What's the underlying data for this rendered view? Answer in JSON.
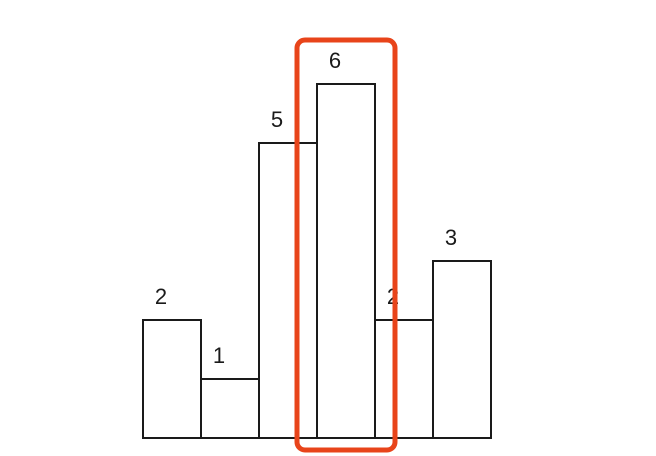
{
  "chart_data": {
    "type": "bar",
    "values": [
      2,
      1,
      5,
      6,
      2,
      3
    ],
    "labels": [
      "2",
      "1",
      "5",
      "6",
      "2",
      "3"
    ],
    "highlight_index": 3,
    "ylim": [
      0,
      6
    ],
    "grid": false,
    "bar_fill": "#ffffff",
    "bar_stroke": "#1a1a1a",
    "highlight_color": "#e8441a"
  }
}
